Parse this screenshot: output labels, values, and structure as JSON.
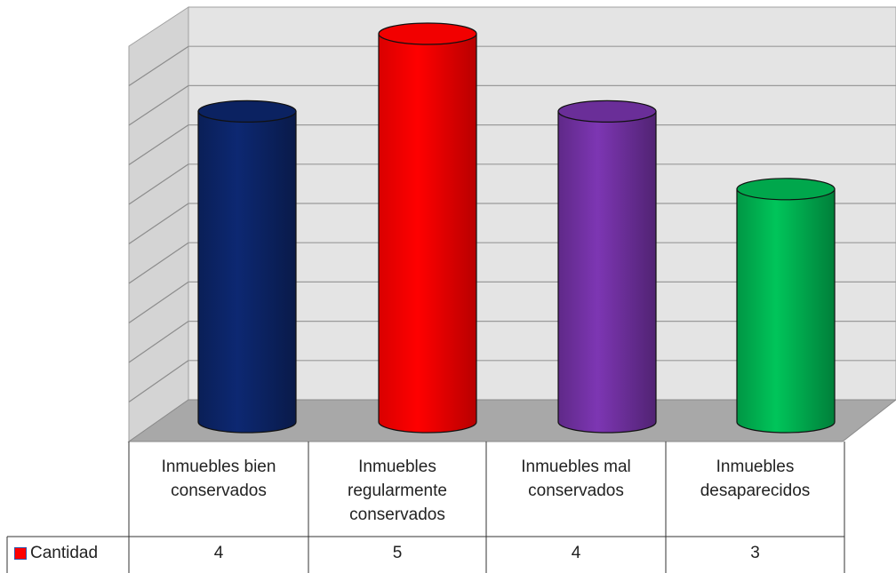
{
  "chart_data": {
    "type": "bar",
    "style": "3d-cylinder",
    "categories": [
      "Inmuebles bien conservados",
      "Inmuebles regularmente conservados",
      "Inmuebles mal conservados",
      "Inmuebles desaparecidos"
    ],
    "category_lines": [
      [
        "Inmuebles bien",
        "conservados"
      ],
      [
        "Inmuebles",
        "regularmente",
        "conservados"
      ],
      [
        "Inmuebles mal",
        "conservados"
      ],
      [
        "Inmuebles",
        "desaparecidos"
      ]
    ],
    "series": [
      {
        "name": "Cantidad",
        "values": [
          4,
          5,
          4,
          3
        ]
      }
    ],
    "bar_colors": [
      "#0c2466",
      "#ff0000",
      "#7030a0",
      "#00b050"
    ],
    "legend_color": "#ff0000",
    "legend_position": "left of data table",
    "data_table": true,
    "grid": true,
    "title": "",
    "xlabel": "",
    "ylabel": ""
  }
}
